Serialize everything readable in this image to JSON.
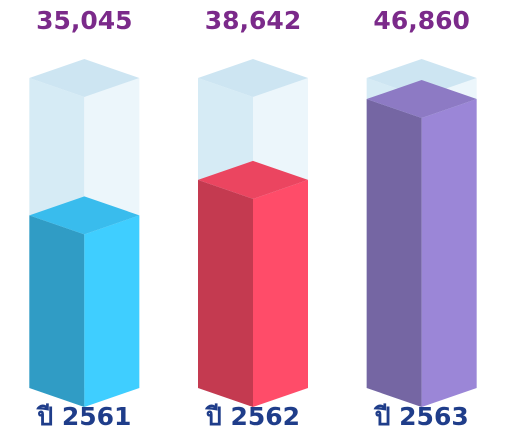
{
  "chart_data": {
    "type": "bar3d",
    "categories": [
      "ปี 2561",
      "ปี 2562",
      "ปี 2563"
    ],
    "values": [
      35045,
      38642,
      46860
    ],
    "value_labels": [
      "35,045",
      "38,642",
      "46,860"
    ],
    "colors": [
      "#38b8e8",
      "#e6445e",
      "#8a78c0"
    ],
    "ylim": [
      17500,
      49000
    ]
  }
}
